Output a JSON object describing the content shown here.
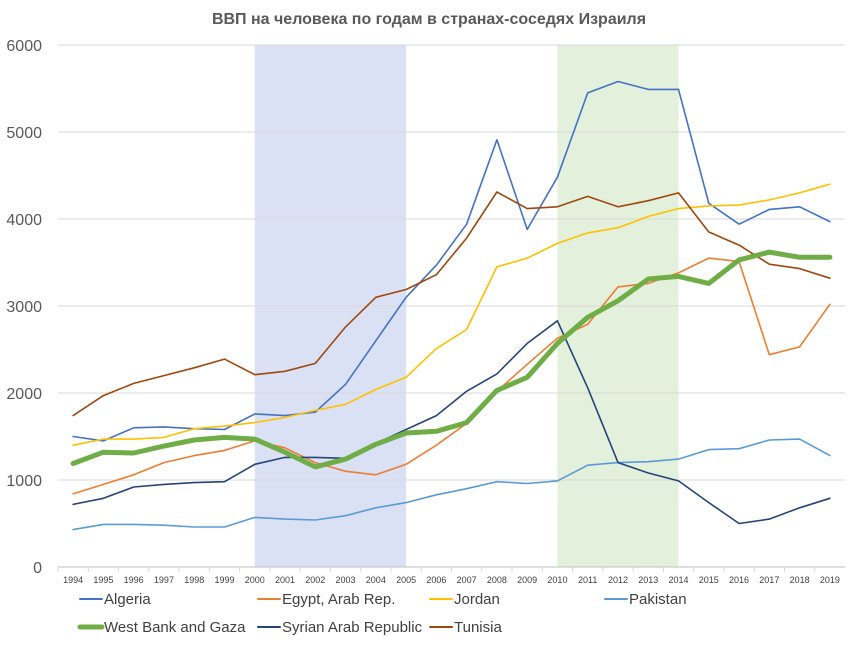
{
  "chart_data": {
    "type": "line",
    "title": "ВВП на человека по годам в странах-соседях Израиля",
    "xlabel": "",
    "ylabel": "",
    "ylim": [
      0,
      6000
    ],
    "yticks": [
      0,
      1000,
      2000,
      3000,
      4000,
      5000,
      6000
    ],
    "grid": true,
    "legend_position": "bottom",
    "categories": [
      "1994",
      "1995",
      "1996",
      "1997",
      "1998",
      "1999",
      "2000",
      "2001",
      "2002",
      "2003",
      "2004",
      "2005",
      "2006",
      "2007",
      "2008",
      "2009",
      "2010",
      "2011",
      "2012",
      "2013",
      "2014",
      "2015",
      "2016",
      "2017",
      "2018",
      "2019"
    ],
    "highlight_bands": [
      {
        "from": "2000",
        "to": "2005",
        "color": "#dbe1f4"
      },
      {
        "from": "2010",
        "to": "2014",
        "color": "#e3f0dc"
      }
    ],
    "series": [
      {
        "name": "Algeria",
        "color": "#4472c4",
        "width": 1.6,
        "values": [
          1500,
          1450,
          1600,
          1610,
          1590,
          1580,
          1760,
          1740,
          1780,
          2100,
          2600,
          3100,
          3470,
          3940,
          4910,
          3880,
          4480,
          5450,
          5580,
          5490,
          5490,
          4180,
          3940,
          4110,
          4140,
          3970
        ]
      },
      {
        "name": "Egypt, Arab Rep.",
        "color": "#ed7d31",
        "width": 1.6,
        "values": [
          840,
          950,
          1060,
          1200,
          1280,
          1340,
          1450,
          1370,
          1200,
          1100,
          1060,
          1180,
          1400,
          1650,
          2020,
          2330,
          2630,
          2790,
          3220,
          3260,
          3380,
          3550,
          3510,
          2440,
          2530,
          3020
        ]
      },
      {
        "name": "Jordan",
        "color": "#ffc000",
        "width": 1.6,
        "values": [
          1400,
          1470,
          1470,
          1490,
          1590,
          1620,
          1660,
          1720,
          1800,
          1870,
          2040,
          2180,
          2510,
          2730,
          3450,
          3550,
          3720,
          3840,
          3900,
          4030,
          4120,
          4150,
          4160,
          4220,
          4300,
          4400
        ]
      },
      {
        "name": "Pakistan",
        "color": "#5b9bd5",
        "width": 1.6,
        "values": [
          430,
          490,
          490,
          480,
          460,
          460,
          570,
          550,
          540,
          590,
          680,
          740,
          830,
          900,
          980,
          960,
          990,
          1170,
          1200,
          1210,
          1240,
          1350,
          1360,
          1460,
          1470,
          1280
        ]
      },
      {
        "name": "West Bank and Gaza",
        "color": "#70ad47",
        "width": 5,
        "values": [
          1190,
          1320,
          1310,
          1390,
          1460,
          1490,
          1470,
          1320,
          1150,
          1240,
          1410,
          1540,
          1560,
          1660,
          2030,
          2180,
          2570,
          2870,
          3060,
          3310,
          3340,
          3260,
          3530,
          3620,
          3560,
          3560
        ]
      },
      {
        "name": "Syrian Arab Republic",
        "color": "#264478",
        "width": 1.6,
        "values": [
          720,
          790,
          920,
          950,
          970,
          980,
          1180,
          1260,
          1260,
          1250,
          1420,
          1580,
          1740,
          2020,
          2220,
          2570,
          2830,
          2060,
          1200,
          1080,
          990,
          740,
          500,
          550,
          680,
          790
        ]
      },
      {
        "name": "Tunisia",
        "color": "#9e480e",
        "width": 1.6,
        "values": [
          1740,
          1970,
          2110,
          2200,
          2290,
          2390,
          2210,
          2250,
          2340,
          2760,
          3100,
          3190,
          3360,
          3780,
          4310,
          4120,
          4140,
          4260,
          4140,
          4210,
          4300,
          3850,
          3700,
          3480,
          3430,
          3320
        ]
      }
    ]
  }
}
